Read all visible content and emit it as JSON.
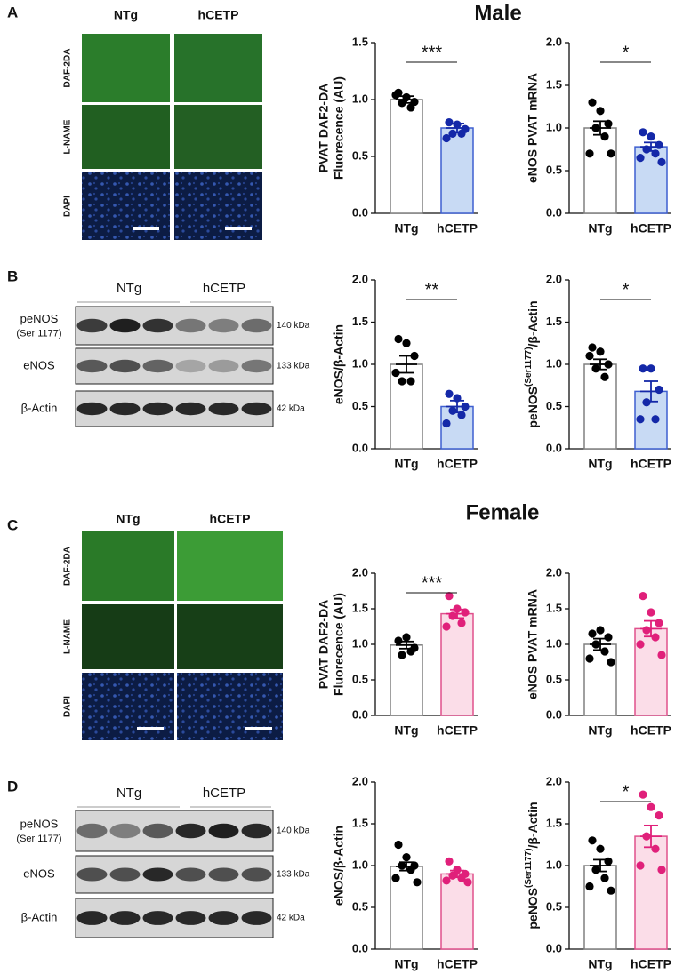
{
  "figure": {
    "panels": [
      "A",
      "B",
      "C",
      "D"
    ],
    "sexes": [
      "Male",
      "Female"
    ],
    "groups": [
      "NTg",
      "hCETP"
    ],
    "stains": [
      "DAF-2DA",
      "L-NAME",
      "DAPI"
    ],
    "blot_rows": [
      [
        "peNOS",
        "(Ser 1177)"
      ],
      [
        "eNOS"
      ],
      [
        "β-Actin"
      ]
    ],
    "kda": [
      "140 kDa",
      "133 kDa",
      "42 kDa"
    ]
  },
  "chart_data": [
    {
      "type": "bar",
      "ylabel": [
        "PVAT DAF2-DA",
        "Fluorecence (AU)"
      ],
      "categories": [
        "NTg",
        "hCETP"
      ],
      "values": [
        1.0,
        0.75
      ],
      "errors": [
        0.03,
        0.04
      ],
      "points": [
        [
          1.06,
          1.02,
          0.98,
          0.97,
          0.93,
          1.04
        ],
        [
          0.8,
          0.78,
          0.74,
          0.7,
          0.7,
          0.66
        ]
      ],
      "fill": [
        "#ffffff",
        "#c8daf4"
      ],
      "edge": [
        "#808080",
        "#3e5fd0"
      ],
      "dot": [
        "#000000",
        "#1428a8"
      ],
      "ylim": [
        0,
        1.5
      ],
      "yticks": [
        {
          "value": 0,
          "label": "0.0"
        },
        {
          "value": 0.5,
          "label": "0.5"
        },
        {
          "value": 1,
          "label": "1.0"
        },
        {
          "value": 1.5,
          "label": "1.5"
        }
      ],
      "significance": "***"
    },
    {
      "type": "bar",
      "ylabel": [
        "eNOS PVAT mRNA"
      ],
      "categories": [
        "NTg",
        "hCETP"
      ],
      "values": [
        1.0,
        0.78
      ],
      "errors": [
        0.08,
        0.05
      ],
      "points": [
        [
          1.3,
          1.2,
          1.05,
          1.0,
          0.9,
          0.7,
          0.7
        ],
        [
          0.95,
          0.9,
          0.8,
          0.75,
          0.7,
          0.65,
          0.6
        ]
      ],
      "fill": [
        "#ffffff",
        "#c8daf4"
      ],
      "edge": [
        "#808080",
        "#3e5fd0"
      ],
      "dot": [
        "#000000",
        "#1428a8"
      ],
      "ylim": [
        0,
        2
      ],
      "yticks": [
        {
          "value": 0,
          "label": "0.0"
        },
        {
          "value": 0.5,
          "label": "0.5"
        },
        {
          "value": 1,
          "label": "1.0"
        },
        {
          "value": 1.5,
          "label": "1.5"
        },
        {
          "value": 2,
          "label": "2.0"
        }
      ],
      "significance": "*"
    },
    {
      "type": "bar",
      "ylabel": [
        "eNOS/β-Actin"
      ],
      "categories": [
        "NTg",
        "hCETP"
      ],
      "values": [
        1.0,
        0.5
      ],
      "errors": [
        0.1,
        0.07
      ],
      "points": [
        [
          1.3,
          1.25,
          1.1,
          0.8,
          0.8,
          0.9
        ],
        [
          0.65,
          0.6,
          0.5,
          0.45,
          0.4,
          0.3
        ]
      ],
      "fill": [
        "#ffffff",
        "#c8daf4"
      ],
      "edge": [
        "#808080",
        "#3e5fd0"
      ],
      "dot": [
        "#000000",
        "#1428a8"
      ],
      "ylim": [
        0,
        2
      ],
      "yticks": [
        {
          "value": 0,
          "label": "0.0"
        },
        {
          "value": 0.5,
          "label": "0.5"
        },
        {
          "value": 1,
          "label": "1.0"
        },
        {
          "value": 1.5,
          "label": "1.5"
        },
        {
          "value": 2,
          "label": "2.0"
        }
      ],
      "significance": "**"
    },
    {
      "type": "bar",
      "ylabel": [
        [
          {
            "text": "peNOS"
          },
          {
            "text": "(Ser1177)",
            "sup": true
          },
          {
            "text": "/β-Actin"
          }
        ]
      ],
      "categories": [
        "NTg",
        "hCETP"
      ],
      "values": [
        1.0,
        0.68
      ],
      "errors": [
        0.06,
        0.12
      ],
      "points": [
        [
          1.2,
          1.15,
          1.0,
          0.95,
          0.85,
          1.1
        ],
        [
          0.95,
          0.95,
          0.7,
          0.55,
          0.35,
          0.35
        ]
      ],
      "fill": [
        "#ffffff",
        "#c8daf4"
      ],
      "edge": [
        "#808080",
        "#3e5fd0"
      ],
      "dot": [
        "#000000",
        "#1428a8"
      ],
      "ylim": [
        0,
        2
      ],
      "yticks": [
        {
          "value": 0,
          "label": "0.0"
        },
        {
          "value": 0.5,
          "label": "0.5"
        },
        {
          "value": 1,
          "label": "1.0"
        },
        {
          "value": 1.5,
          "label": "1.5"
        },
        {
          "value": 2,
          "label": "2.0"
        }
      ],
      "significance": "*"
    },
    {
      "type": "bar",
      "ylabel": [
        "PVAT DAF2-DA",
        "Fluorecence (AU)"
      ],
      "categories": [
        "NTg",
        "hCETP"
      ],
      "values": [
        0.99,
        1.43
      ],
      "errors": [
        0.05,
        0.06
      ],
      "points": [
        [
          1.05,
          1.1,
          0.95,
          0.85,
          0.9
        ],
        [
          1.68,
          1.5,
          1.45,
          1.4,
          1.3,
          1.25
        ]
      ],
      "fill": [
        "#ffffff",
        "#fbdde8"
      ],
      "edge": [
        "#808080",
        "#e0508c"
      ],
      "dot": [
        "#000000",
        "#e0207a"
      ],
      "ylim": [
        0,
        2
      ],
      "yticks": [
        {
          "value": 0,
          "label": "0.0"
        },
        {
          "value": 0.5,
          "label": "0.5"
        },
        {
          "value": 1,
          "label": "1.0"
        },
        {
          "value": 1.5,
          "label": "1.5"
        },
        {
          "value": 2,
          "label": "2.0"
        }
      ],
      "significance": "***"
    },
    {
      "type": "bar",
      "ylabel": [
        "eNOS PVAT mRNA"
      ],
      "categories": [
        "NTg",
        "hCETP"
      ],
      "values": [
        1.0,
        1.22
      ],
      "errors": [
        0.08,
        0.11
      ],
      "points": [
        [
          1.15,
          1.2,
          1.1,
          1.0,
          0.9,
          0.8,
          0.75
        ],
        [
          1.68,
          1.45,
          1.3,
          1.2,
          1.1,
          1.0,
          0.85
        ]
      ],
      "fill": [
        "#ffffff",
        "#fbdde8"
      ],
      "edge": [
        "#808080",
        "#e0508c"
      ],
      "dot": [
        "#000000",
        "#e0207a"
      ],
      "ylim": [
        0,
        2
      ],
      "yticks": [
        {
          "value": 0,
          "label": "0.0"
        },
        {
          "value": 0.5,
          "label": "0.5"
        },
        {
          "value": 1,
          "label": "1.0"
        },
        {
          "value": 1.5,
          "label": "1.5"
        },
        {
          "value": 2,
          "label": "2.0"
        }
      ]
    },
    {
      "type": "bar",
      "ylabel": [
        "eNOS/β-Actin"
      ],
      "categories": [
        "NTg",
        "hCETP"
      ],
      "values": [
        0.99,
        0.9
      ],
      "errors": [
        0.05,
        0.04
      ],
      "points": [
        [
          1.25,
          1.1,
          1.0,
          1.0,
          0.95,
          0.85,
          0.8
        ],
        [
          1.05,
          0.95,
          0.9,
          0.88,
          0.85,
          0.82,
          0.8
        ]
      ],
      "fill": [
        "#ffffff",
        "#fbdde8"
      ],
      "edge": [
        "#808080",
        "#e0508c"
      ],
      "dot": [
        "#000000",
        "#e0207a"
      ],
      "ylim": [
        0,
        2
      ],
      "yticks": [
        {
          "value": 0,
          "label": "0.0"
        },
        {
          "value": 0.5,
          "label": "0.5"
        },
        {
          "value": 1,
          "label": "1.0"
        },
        {
          "value": 1.5,
          "label": "1.5"
        },
        {
          "value": 2,
          "label": "2.0"
        }
      ]
    },
    {
      "type": "bar",
      "ylabel": [
        [
          {
            "text": "peNOS"
          },
          {
            "text": "(Ser1177)",
            "sup": true
          },
          {
            "text": "/β-Actin"
          }
        ]
      ],
      "categories": [
        "NTg",
        "hCETP"
      ],
      "values": [
        1.0,
        1.35
      ],
      "errors": [
        0.07,
        0.13
      ],
      "points": [
        [
          1.3,
          1.2,
          1.05,
          0.95,
          0.85,
          0.75,
          0.7
        ],
        [
          1.85,
          1.7,
          1.6,
          1.35,
          1.2,
          1.0,
          0.95
        ]
      ],
      "fill": [
        "#ffffff",
        "#fbdde8"
      ],
      "edge": [
        "#808080",
        "#e0508c"
      ],
      "dot": [
        "#000000",
        "#e0207a"
      ],
      "ylim": [
        0,
        2
      ],
      "yticks": [
        {
          "value": 0,
          "label": "0.0"
        },
        {
          "value": 0.5,
          "label": "0.5"
        },
        {
          "value": 1,
          "label": "1.0"
        },
        {
          "value": 1.5,
          "label": "1.5"
        },
        {
          "value": 2,
          "label": "2.0"
        }
      ],
      "significance": "*"
    }
  ]
}
